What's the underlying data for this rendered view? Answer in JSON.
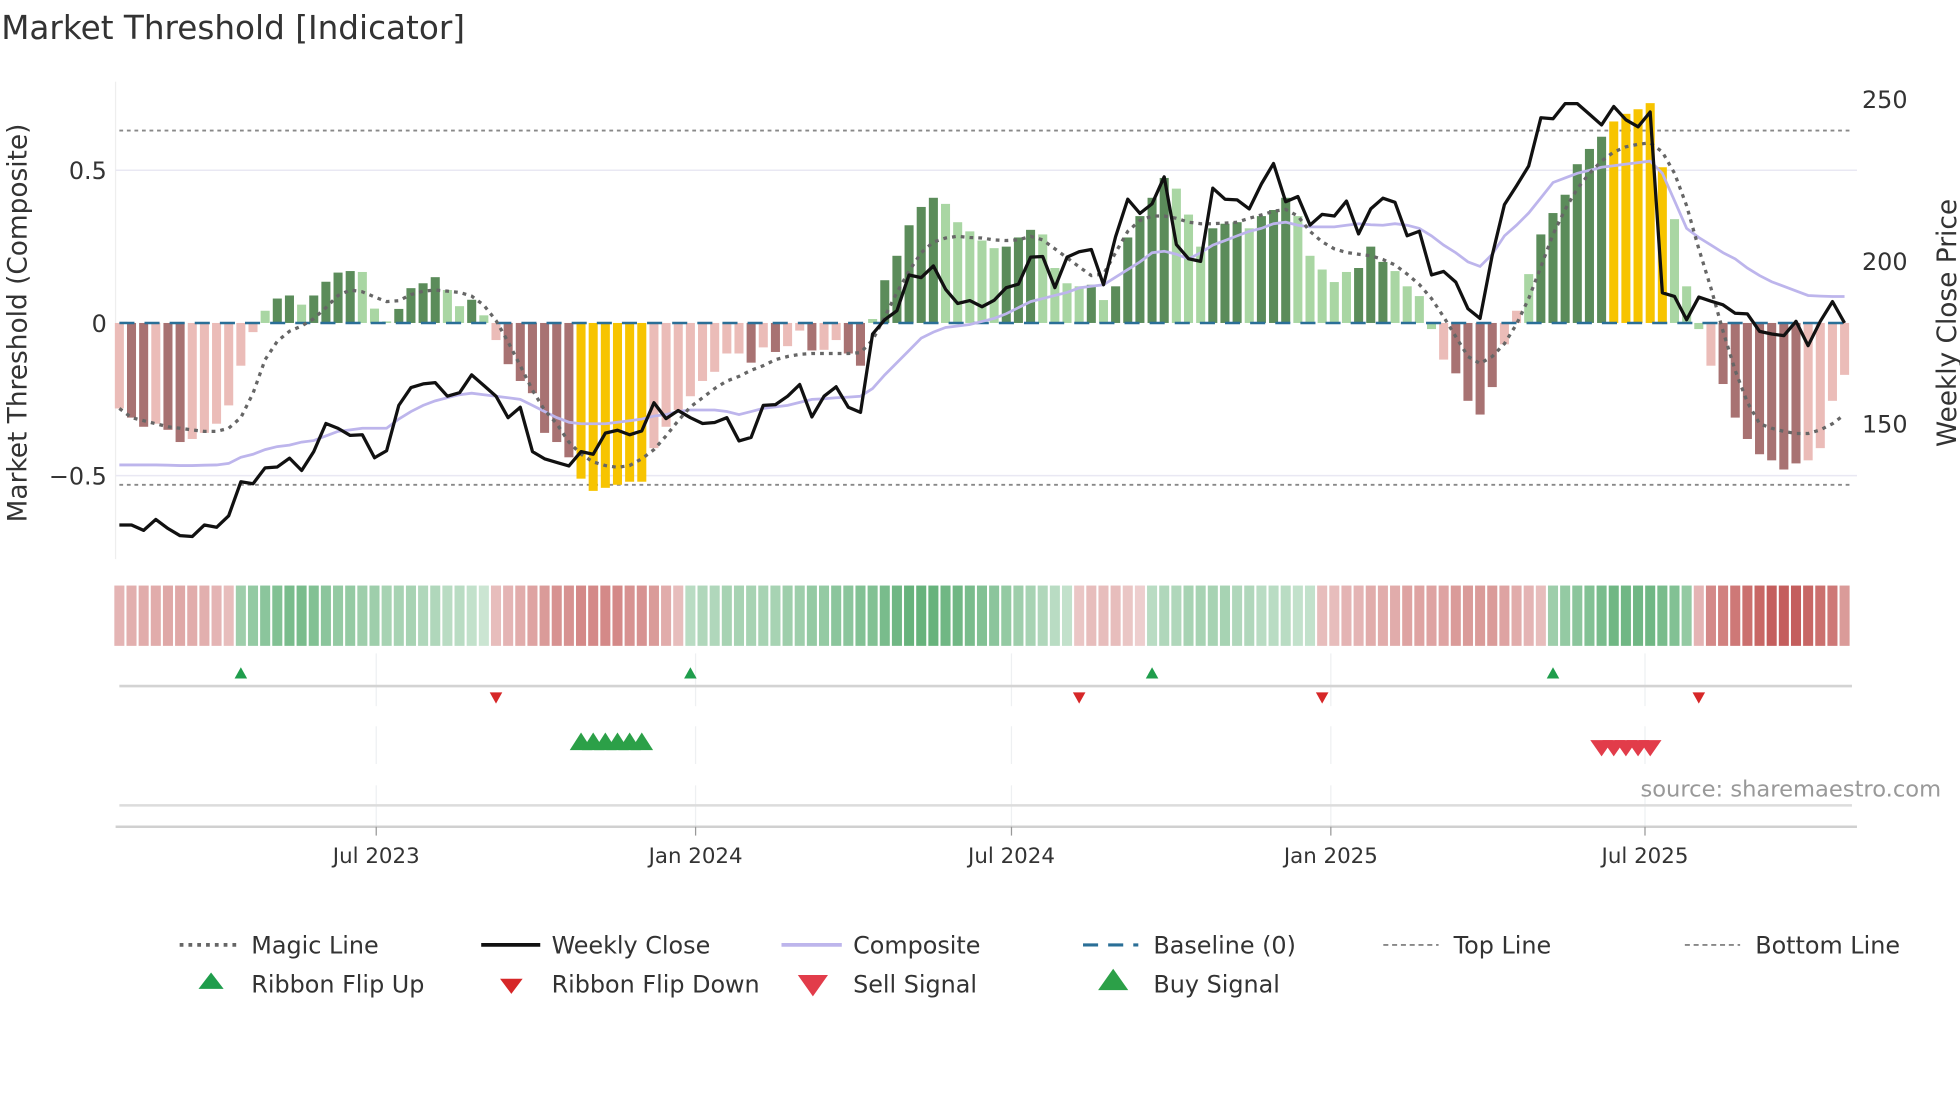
{
  "title": "Market Threshold [Indicator]",
  "source": "source: sharemaestro.com",
  "colors": {
    "bar_strong_pos": "#5b8c5a",
    "bar_weak_pos": "#a9d6a3",
    "bar_strong_neg": "#a87272",
    "bar_weak_neg": "#ebbcb8",
    "bar_signal": "#f7c400",
    "close": "#111111",
    "composite": "#bdb5ec",
    "magic": "#666666",
    "baseline": "#2a6f97",
    "threshold": "#888888",
    "ribbon_up": "#3f9f5a",
    "ribbon_down": "#bd4a48",
    "flip_up": "#1f9d4c",
    "flip_down": "#d62728",
    "buy": "#2ca048",
    "sell": "#e23c4a"
  },
  "chart_data": {
    "type": "bar",
    "title": "Market Threshold [Indicator]",
    "ylabel": "Market Threshold (Composite)",
    "y2label": "Weekly Close Price",
    "xlabel": "",
    "start_date": "2023-02-03",
    "interval": "weekly",
    "ylim": [
      -0.79,
      0.79
    ],
    "y2lim": [
      118,
      265
    ],
    "yticks": [
      {
        "value": 0.5,
        "label": "0.5"
      },
      {
        "value": 0,
        "label": "0"
      },
      {
        "value": -0.5,
        "label": "−0.5"
      }
    ],
    "y2ticks": [
      {
        "value": 250,
        "label": "250"
      },
      {
        "value": 200,
        "label": "200"
      },
      {
        "value": 150,
        "label": "150"
      }
    ],
    "xticks": [
      {
        "date": "2023-07-01",
        "label": "Jul 2023"
      },
      {
        "date": "2024-01-01",
        "label": "Jan 2024"
      },
      {
        "date": "2024-07-01",
        "label": "Jul 2024"
      },
      {
        "date": "2025-01-01",
        "label": "Jan 2025"
      },
      {
        "date": "2025-07-01",
        "label": "Jul 2025"
      }
    ],
    "top_line": 0.63,
    "bottom_line": -0.53,
    "baseline": 0,
    "histogram": [
      -0.28,
      -0.31,
      -0.34,
      -0.33,
      -0.35,
      -0.39,
      -0.38,
      -0.36,
      -0.33,
      -0.27,
      -0.14,
      -0.03,
      0.04,
      0.08,
      0.09,
      0.06,
      0.09,
      0.135,
      0.165,
      0.17,
      0.167,
      0.047,
      0.005,
      0.046,
      0.114,
      0.13,
      0.15,
      0.108,
      0.055,
      0.076,
      0.025,
      -0.056,
      -0.135,
      -0.19,
      -0.23,
      -0.36,
      -0.39,
      -0.44,
      -0.51,
      -0.55,
      -0.54,
      -0.53,
      -0.52,
      -0.52,
      -0.41,
      -0.34,
      -0.285,
      -0.24,
      -0.19,
      -0.16,
      -0.1,
      -0.1,
      -0.13,
      -0.08,
      -0.095,
      -0.076,
      -0.025,
      -0.09,
      -0.088,
      -0.056,
      -0.1,
      -0.14,
      0.013,
      0.14,
      0.22,
      0.32,
      0.38,
      0.41,
      0.39,
      0.33,
      0.3,
      0.27,
      0.245,
      0.25,
      0.28,
      0.305,
      0.29,
      0.18,
      0.13,
      0.12,
      0.125,
      0.075,
      0.12,
      0.28,
      0.35,
      0.41,
      0.475,
      0.44,
      0.355,
      0.25,
      0.31,
      0.325,
      0.33,
      0.31,
      0.35,
      0.37,
      0.41,
      0.35,
      0.22,
      0.175,
      0.134,
      0.167,
      0.18,
      0.25,
      0.2,
      0.17,
      0.12,
      0.088,
      -0.02,
      -0.12,
      -0.165,
      -0.255,
      -0.3,
      -0.21,
      -0.07,
      0.04,
      0.16,
      0.29,
      0.36,
      0.42,
      0.52,
      0.57,
      0.61,
      0.66,
      0.685,
      0.7,
      0.72,
      0.51,
      0.34,
      0.12,
      -0.02,
      -0.14,
      -0.2,
      -0.31,
      -0.38,
      -0.43,
      -0.45,
      -0.48,
      -0.46,
      -0.45,
      -0.41,
      -0.255,
      -0.17
    ],
    "histogram_tone": "rRRrRRrrrrrrgGGgGGGGgggGGGGggGgrRRRRRRYYYYYYrrrrrrrrRrRrrRrrRRgGGGGGgggggGGGggggGgGGGGGgggGGGgGGGgggggGGGggggrRRRRrrgGGGGGGYYYYYgggrRRRRRRRrrrrr",
    "composite": [
      -0.465,
      -0.465,
      -0.465,
      -0.465,
      -0.466,
      -0.467,
      -0.467,
      -0.466,
      -0.465,
      -0.46,
      -0.44,
      -0.43,
      -0.415,
      -0.405,
      -0.4,
      -0.39,
      -0.385,
      -0.37,
      -0.355,
      -0.35,
      -0.345,
      -0.345,
      -0.345,
      -0.315,
      -0.29,
      -0.27,
      -0.255,
      -0.245,
      -0.235,
      -0.23,
      -0.235,
      -0.24,
      -0.245,
      -0.25,
      -0.27,
      -0.29,
      -0.31,
      -0.325,
      -0.33,
      -0.33,
      -0.33,
      -0.325,
      -0.32,
      -0.315,
      -0.305,
      -0.3,
      -0.29,
      -0.285,
      -0.285,
      -0.285,
      -0.29,
      -0.3,
      -0.29,
      -0.28,
      -0.275,
      -0.27,
      -0.26,
      -0.25,
      -0.248,
      -0.245,
      -0.243,
      -0.24,
      -0.215,
      -0.17,
      -0.13,
      -0.09,
      -0.05,
      -0.03,
      -0.015,
      -0.01,
      -0.005,
      0.005,
      0.015,
      0.03,
      0.05,
      0.07,
      0.08,
      0.09,
      0.1,
      0.115,
      0.12,
      0.125,
      0.15,
      0.175,
      0.2,
      0.23,
      0.235,
      0.225,
      0.21,
      0.23,
      0.255,
      0.27,
      0.285,
      0.3,
      0.31,
      0.325,
      0.33,
      0.32,
      0.315,
      0.315,
      0.315,
      0.32,
      0.325,
      0.322,
      0.32,
      0.325,
      0.32,
      0.31,
      0.285,
      0.255,
      0.23,
      0.2,
      0.185,
      0.225,
      0.285,
      0.32,
      0.36,
      0.41,
      0.46,
      0.475,
      0.49,
      0.5,
      0.51,
      0.515,
      0.52,
      0.525,
      0.53,
      0.49,
      0.4,
      0.31,
      0.28,
      0.255,
      0.23,
      0.21,
      0.18,
      0.155,
      0.135,
      0.12,
      0.105,
      0.09,
      0.088,
      0.087,
      0.087
    ],
    "magic_line": [
      -0.28,
      -0.31,
      -0.32,
      -0.33,
      -0.34,
      -0.345,
      -0.35,
      -0.355,
      -0.355,
      -0.345,
      -0.31,
      -0.23,
      -0.12,
      -0.06,
      -0.027,
      -0.01,
      0.014,
      0.05,
      0.09,
      0.108,
      0.102,
      0.085,
      0.07,
      0.073,
      0.093,
      0.104,
      0.108,
      0.104,
      0.1,
      0.088,
      0.058,
      0.008,
      -0.062,
      -0.14,
      -0.22,
      -0.285,
      -0.33,
      -0.39,
      -0.43,
      -0.455,
      -0.467,
      -0.473,
      -0.467,
      -0.445,
      -0.415,
      -0.37,
      -0.32,
      -0.275,
      -0.245,
      -0.215,
      -0.19,
      -0.175,
      -0.155,
      -0.14,
      -0.12,
      -0.11,
      -0.103,
      -0.1,
      -0.1,
      -0.1,
      -0.1,
      -0.097,
      -0.056,
      0.02,
      0.1,
      0.17,
      0.23,
      0.265,
      0.278,
      0.284,
      0.28,
      0.278,
      0.272,
      0.27,
      0.272,
      0.284,
      0.272,
      0.243,
      0.213,
      0.184,
      0.155,
      0.16,
      0.23,
      0.3,
      0.336,
      0.35,
      0.35,
      0.343,
      0.33,
      0.325,
      0.325,
      0.327,
      0.33,
      0.343,
      0.354,
      0.366,
      0.372,
      0.35,
      0.3,
      0.266,
      0.243,
      0.231,
      0.225,
      0.22,
      0.208,
      0.19,
      0.16,
      0.126,
      0.08,
      0.02,
      -0.045,
      -0.11,
      -0.133,
      -0.11,
      -0.068,
      -0.004,
      0.08,
      0.184,
      0.29,
      0.372,
      0.44,
      0.49,
      0.53,
      0.56,
      0.577,
      0.585,
      0.59,
      0.56,
      0.49,
      0.384,
      0.243,
      0.114,
      -0.027,
      -0.156,
      -0.26,
      -0.33,
      -0.345,
      -0.355,
      -0.362,
      -0.362,
      -0.35,
      -0.33,
      -0.3
    ],
    "weekly_close": [
      118.7,
      118.7,
      117,
      120.4,
      117.6,
      115.4,
      115.1,
      118.7,
      118,
      121.5,
      132,
      131.4,
      136.3,
      136.6,
      139.3,
      135.5,
      141.3,
      150,
      148.5,
      146.3,
      146.5,
      139.4,
      141.6,
      155.6,
      161.1,
      162.2,
      162.6,
      158.4,
      159.5,
      165,
      161.7,
      158.4,
      151.8,
      155,
      141.3,
      139.1,
      138,
      136.9,
      141.3,
      140.5,
      147,
      147.9,
      146.5,
      147.7,
      156.4,
      151.5,
      154,
      151.8,
      150,
      150.3,
      151.8,
      144.6,
      145.7,
      155.6,
      155.8,
      158.4,
      162,
      152,
      158.4,
      161.3,
      155,
      153.4,
      177.6,
      182,
      184.8,
      195.8,
      195,
      198.6,
      191.4,
      187,
      187.9,
      186,
      188,
      191.9,
      193,
      201.3,
      201.5,
      191.9,
      201.3,
      203,
      203.7,
      192.8,
      207.6,
      219.2,
      214.8,
      217.8,
      226.1,
      205.2,
      200.8,
      200,
      222.6,
      219.2,
      219,
      216.2,
      223.9,
      230.2,
      218.4,
      220,
      211.2,
      214.5,
      214,
      218.6,
      208.5,
      216.2,
      219.5,
      218.2,
      207.9,
      209.3,
      195.8,
      196.9,
      193.6,
      185.4,
      182.4,
      201.9,
      217.5,
      223.3,
      229.4,
      244.3,
      244,
      248.7,
      248.7,
      245.4,
      242.1,
      247.8,
      243.7,
      241.5,
      246.1,
      190.3,
      189.2,
      182,
      189,
      187.7,
      186.6,
      184,
      183.8,
      178.4,
      177.6,
      177.1,
      181.5,
      174,
      181.5,
      187.6,
      181
    ],
    "ribbon": [
      -0.35,
      -0.38,
      -0.4,
      -0.4,
      -0.42,
      -0.42,
      -0.4,
      -0.38,
      -0.35,
      -0.3,
      0.45,
      0.5,
      0.55,
      0.6,
      0.65,
      0.65,
      0.6,
      0.55,
      0.5,
      0.5,
      0.45,
      0.45,
      0.4,
      0.4,
      0.4,
      0.35,
      0.35,
      0.3,
      0.3,
      0.25,
      0.2,
      -0.3,
      -0.35,
      -0.4,
      -0.45,
      -0.5,
      -0.55,
      -0.55,
      -0.6,
      -0.6,
      -0.6,
      -0.6,
      -0.55,
      -0.55,
      -0.5,
      -0.4,
      -0.3,
      0.3,
      0.35,
      0.35,
      0.4,
      0.4,
      0.4,
      0.4,
      0.4,
      0.45,
      0.45,
      0.5,
      0.5,
      0.55,
      0.55,
      0.6,
      0.6,
      0.65,
      0.7,
      0.75,
      0.75,
      0.75,
      0.7,
      0.7,
      0.65,
      0.6,
      0.55,
      0.5,
      0.45,
      0.4,
      0.35,
      0.3,
      0.25,
      -0.25,
      -0.3,
      -0.3,
      -0.3,
      -0.25,
      -0.2,
      0.3,
      0.35,
      0.35,
      0.4,
      0.4,
      0.4,
      0.4,
      0.35,
      0.35,
      0.3,
      0.3,
      0.3,
      0.25,
      0.25,
      -0.3,
      -0.3,
      -0.35,
      -0.35,
      -0.4,
      -0.4,
      -0.4,
      -0.45,
      -0.45,
      -0.45,
      -0.45,
      -0.5,
      -0.5,
      -0.5,
      -0.5,
      -0.45,
      -0.4,
      -0.35,
      -0.3,
      0.45,
      0.5,
      0.55,
      0.6,
      0.65,
      0.7,
      0.7,
      0.7,
      0.7,
      0.65,
      0.6,
      0.5,
      -0.35,
      -0.6,
      -0.65,
      -0.7,
      -0.75,
      -0.8,
      -0.85,
      -0.85,
      -0.85,
      -0.8,
      -0.75,
      -0.7,
      -0.5
    ],
    "ribbon_flip_up_weeks": [
      10,
      47,
      85,
      118
    ],
    "ribbon_flip_down_weeks": [
      31,
      79,
      99,
      130
    ],
    "buy_signal_weeks": [
      38,
      39,
      40,
      41,
      42,
      43
    ],
    "sell_signal_weeks": [
      122,
      123,
      124,
      125,
      126
    ],
    "legend_placement": "bottom"
  },
  "legend": {
    "items": [
      {
        "label": "Magic Line",
        "style": "dotted"
      },
      {
        "label": "Weekly Close",
        "style": "solid-black"
      },
      {
        "label": "Composite",
        "style": "solid-lavender"
      },
      {
        "label": "Baseline (0)",
        "style": "dashed-blue"
      },
      {
        "label": "Top Line",
        "style": "dotted-thin"
      },
      {
        "label": "Bottom Line",
        "style": "dotted-thin"
      },
      {
        "label": "Ribbon Flip Up",
        "style": "triangle-up-small"
      },
      {
        "label": "Ribbon Flip Down",
        "style": "triangle-down-small"
      },
      {
        "label": "Sell Signal",
        "style": "triangle-down"
      },
      {
        "label": "Buy Signal",
        "style": "triangle-up"
      }
    ]
  }
}
